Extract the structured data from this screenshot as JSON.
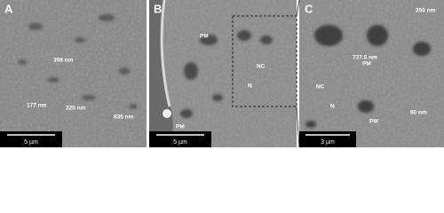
{
  "panels": [
    {
      "label": "A",
      "annotations": [
        "398 nm",
        "177 nm",
        "325 nm",
        "835 nm"
      ],
      "scale_bar": "5 µm"
    },
    {
      "label": "B",
      "annotations": [
        "PM",
        "NC",
        "N",
        "PM"
      ],
      "scale_bar": "5 µm"
    },
    {
      "label": "C",
      "annotations": [
        "250 nm",
        "737.5 nm",
        "PM",
        "NC",
        "N",
        "80 nm",
        "PM"
      ],
      "scale_bar": "3 µm"
    }
  ]
}
